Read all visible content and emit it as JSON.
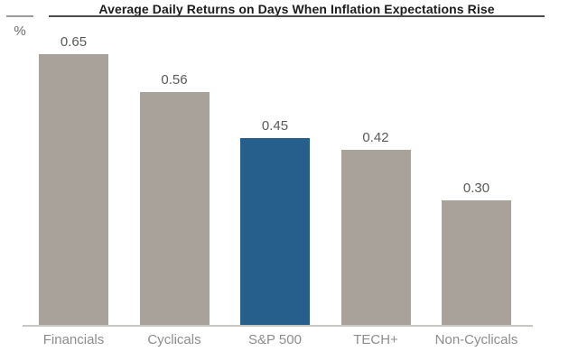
{
  "header": {
    "title": "Average Daily Returns on Days When Inflation Expectations Rise",
    "y_axis_unit": "%"
  },
  "chart_data": {
    "type": "bar",
    "title": "Average Daily Returns on Days When Inflation Expectations Rise",
    "categories": [
      "Financials",
      "Cyclicals",
      "S&P 500",
      "TECH+",
      "Non-Cyclicals"
    ],
    "values": [
      0.65,
      0.56,
      0.45,
      0.42,
      0.3
    ],
    "value_labels": [
      "0.65",
      "0.56",
      "0.45",
      "0.42",
      "0.30"
    ],
    "xlabel": "",
    "ylabel": "%",
    "ylim": [
      0,
      0.72
    ],
    "grid": false,
    "legend_position": "none",
    "highlighted_category": "S&P 500",
    "colors": {
      "bar_default": "#a9a29b",
      "bar_highlight": "#265f8c",
      "value_label": "#595959",
      "category_label": "#8d8d8d",
      "axis_line": "#c9c7c4",
      "title_rule": "#4d4d4d"
    }
  }
}
